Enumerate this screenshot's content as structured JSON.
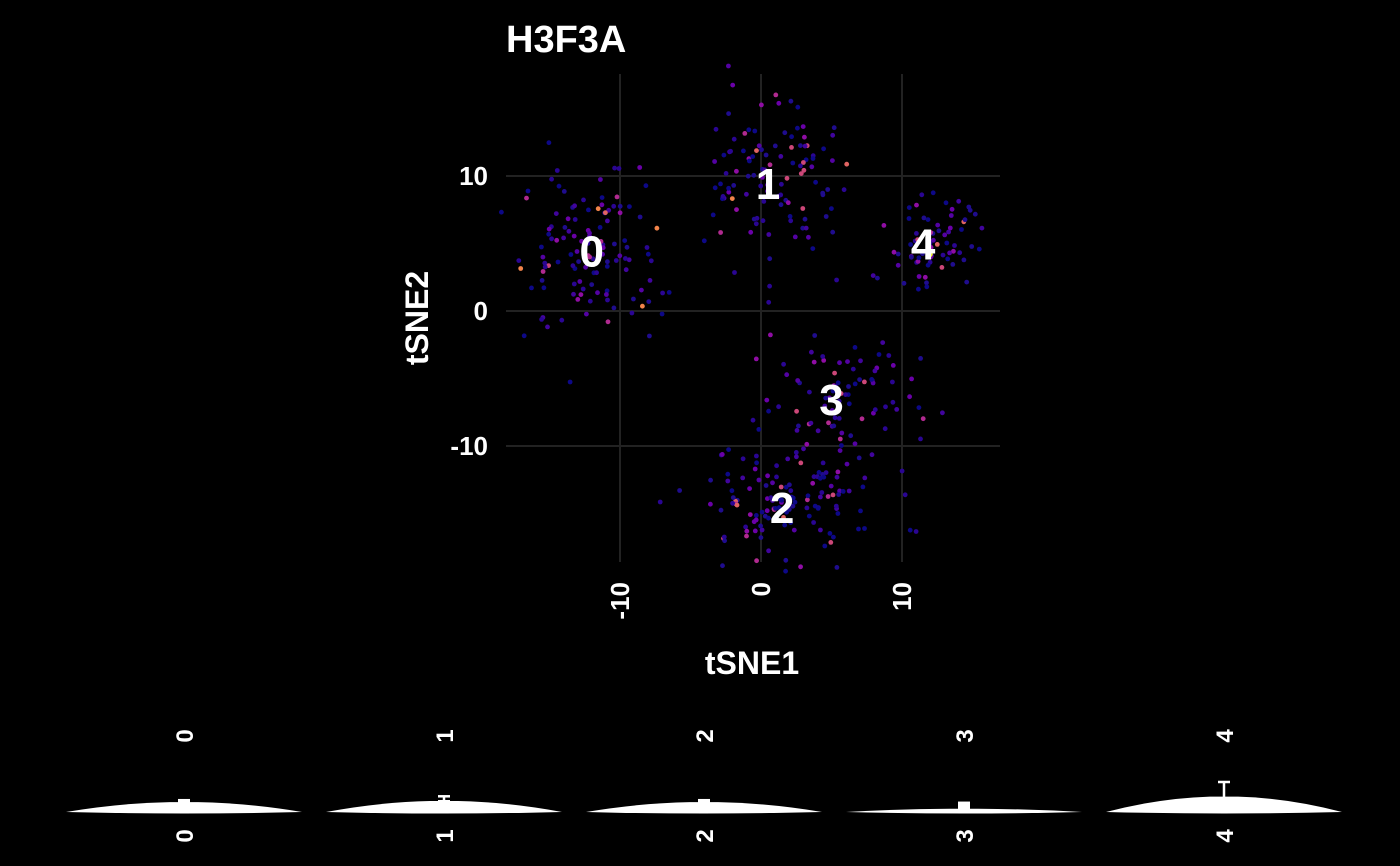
{
  "colors": {
    "background": "#000000",
    "text": "#ffffff",
    "grid": "#222222",
    "violin": "#ffffff"
  },
  "chart_data": [
    {
      "type": "scatter",
      "title": "H3F3A",
      "xlabel": "tSNE1",
      "ylabel": "tSNE2",
      "xlim": [
        -17,
        17
      ],
      "ylim": [
        -18.5,
        17.5
      ],
      "xticks": [
        -10,
        0,
        10
      ],
      "xtick_labels": [
        "-10",
        "0",
        "10"
      ],
      "yticks": [
        -10,
        0,
        10
      ],
      "ytick_labels": [
        "-10",
        "0",
        "10"
      ],
      "grid": true,
      "color_scale": "plasma",
      "cluster_labels": [
        {
          "label": "0",
          "x": -12,
          "y": 4.5
        },
        {
          "label": "1",
          "x": 0.5,
          "y": 9.5
        },
        {
          "label": "2",
          "x": 1.5,
          "y": -14.5
        },
        {
          "label": "3",
          "x": 5,
          "y": -6.5
        },
        {
          "label": "4",
          "x": 11.5,
          "y": 5
        }
      ],
      "clusters": [
        {
          "name": "0",
          "cx": -12,
          "cy": 4.5,
          "sx": 2.5,
          "sy": 3,
          "n": 120
        },
        {
          "name": "1",
          "cx": 0.5,
          "cy": 10,
          "sx": 2.3,
          "sy": 3,
          "n": 110
        },
        {
          "name": "2",
          "cx": 1.5,
          "cy": -14,
          "sx": 3.5,
          "sy": 2,
          "n": 130
        },
        {
          "name": "3",
          "cx": 5,
          "cy": -6.5,
          "sx": 3,
          "sy": 2.5,
          "n": 90
        },
        {
          "name": "4",
          "cx": 12,
          "cy": 5,
          "sx": 2,
          "sy": 1.8,
          "n": 70
        }
      ]
    },
    {
      "type": "violin",
      "categories": [
        "0",
        "1",
        "2",
        "3",
        "4"
      ],
      "relative_max_width": [
        0.09,
        0.1,
        0.09,
        0.03,
        0.14
      ],
      "relative_whisker_height": [
        0.3,
        0.45,
        0.3,
        0.2,
        1.0
      ]
    }
  ]
}
